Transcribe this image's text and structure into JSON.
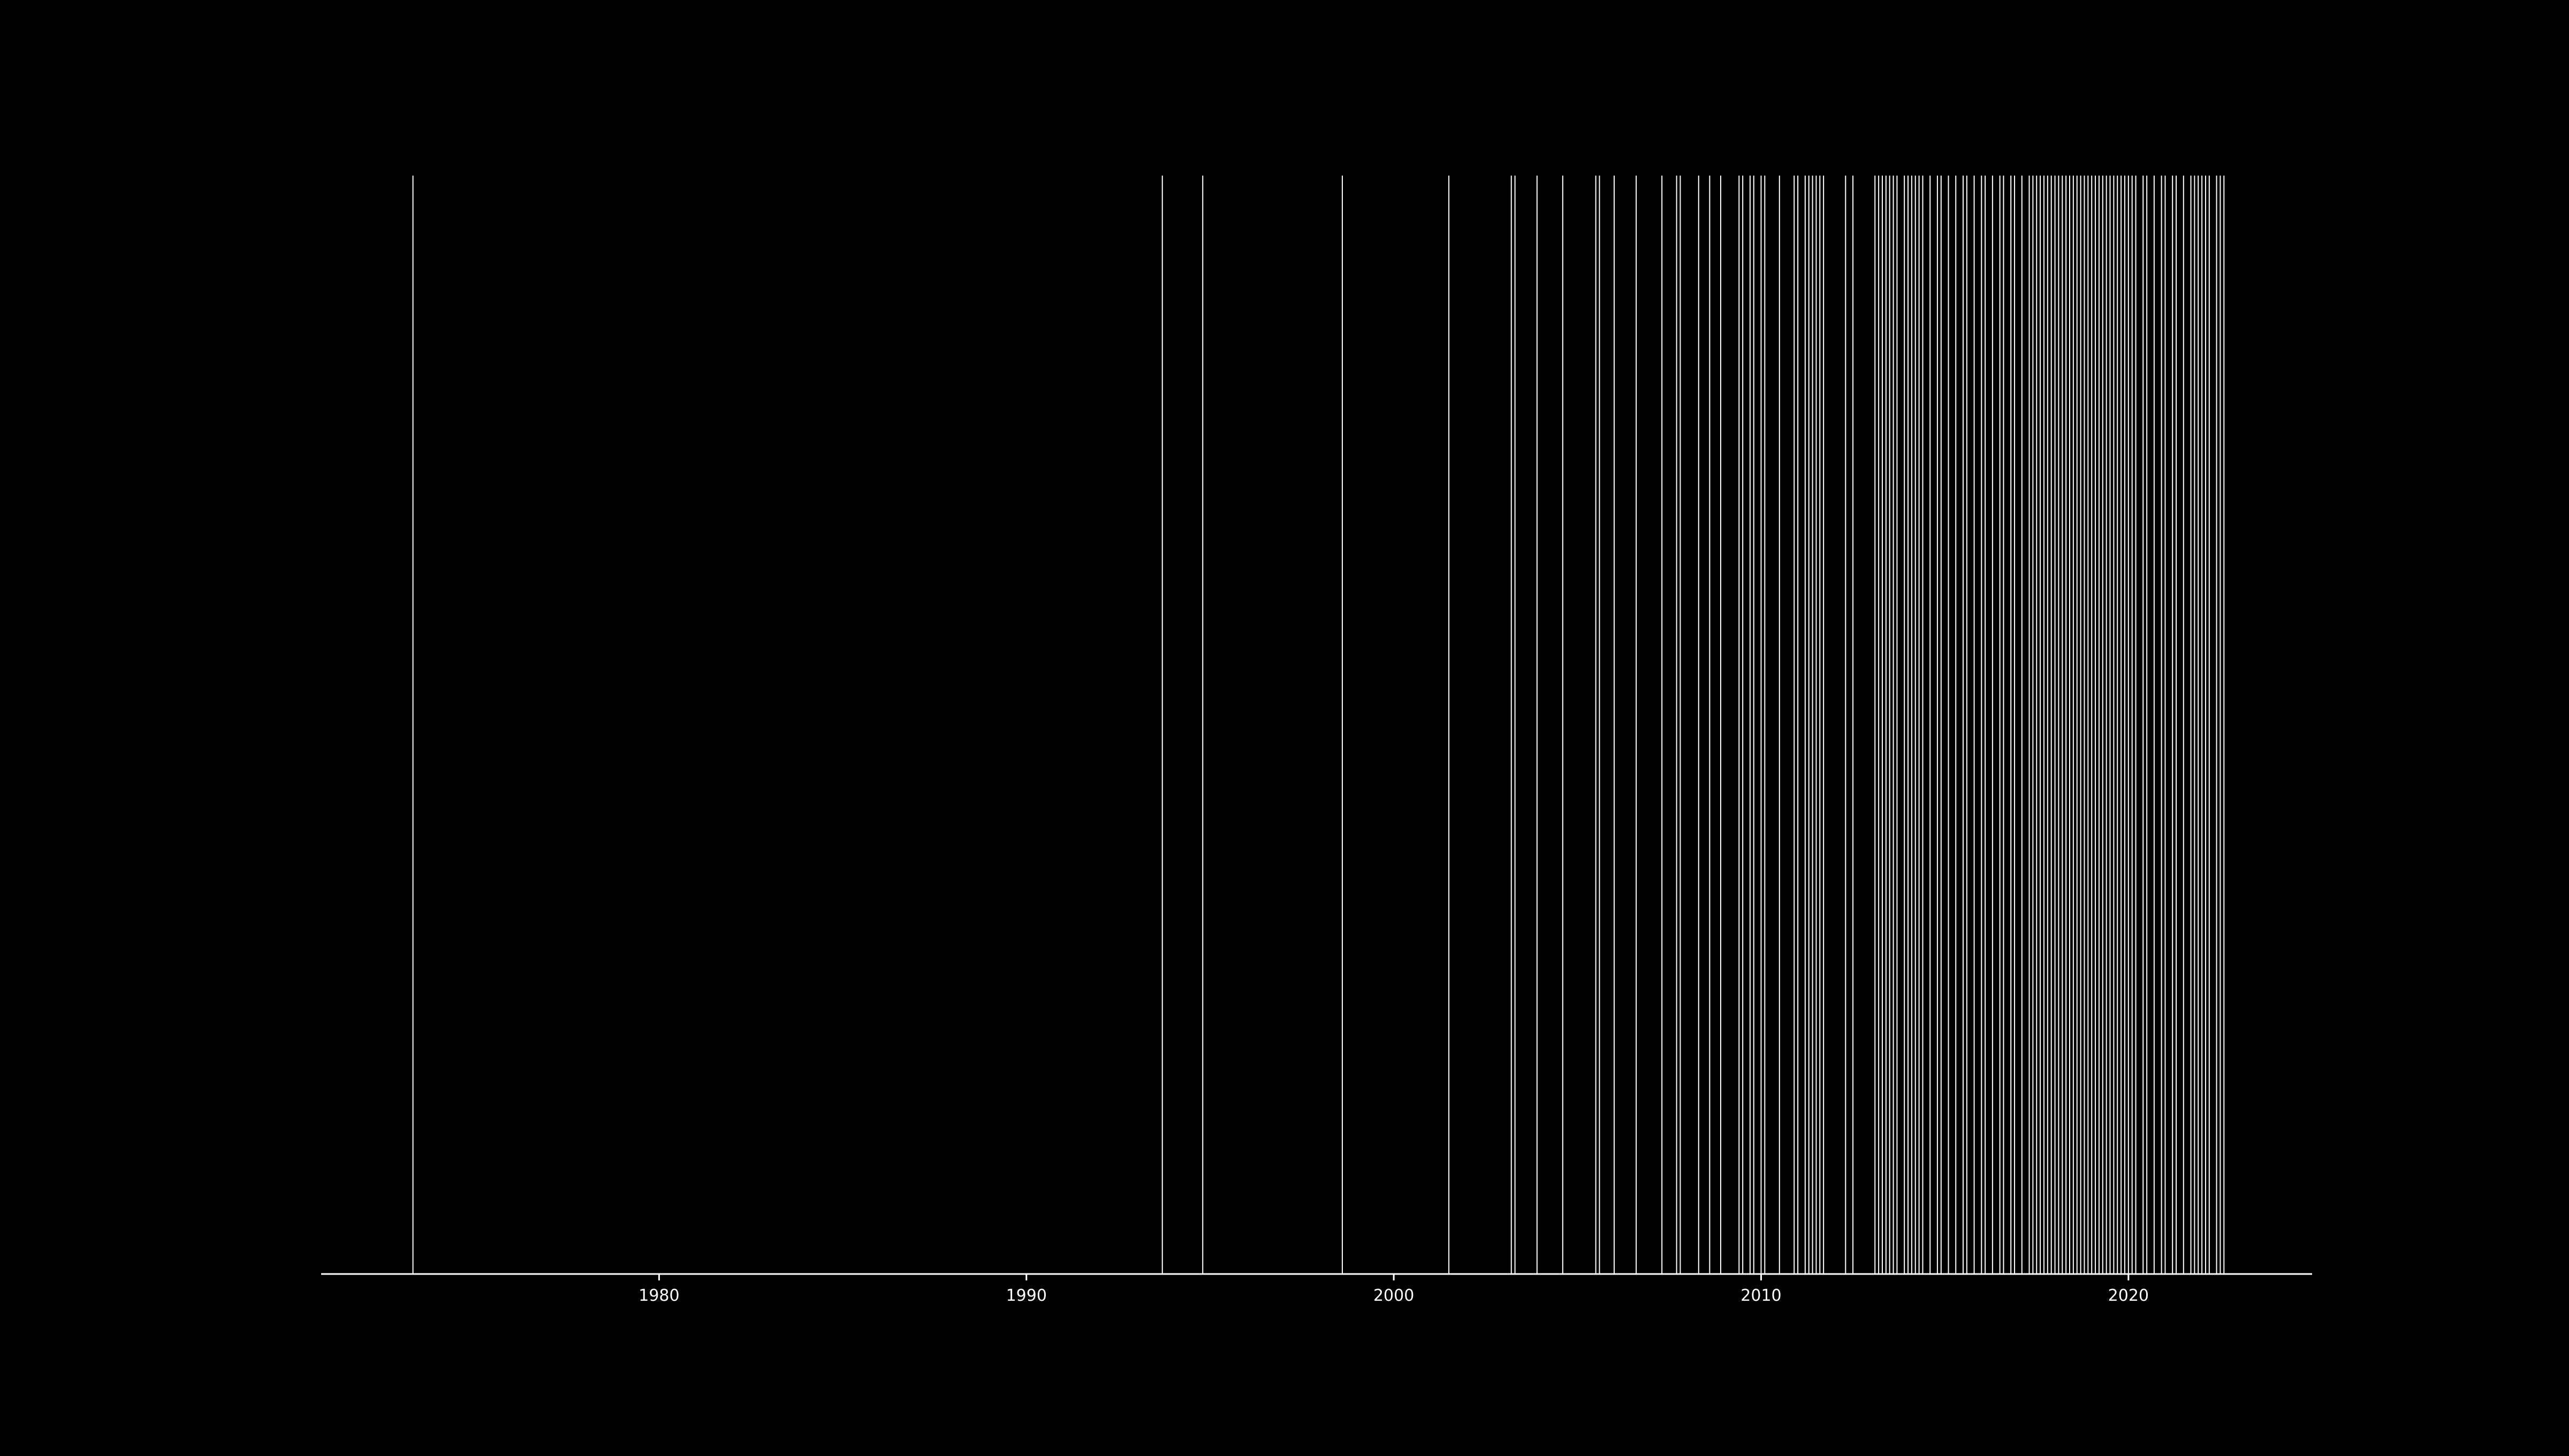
{
  "chart_data": {
    "type": "event-lines",
    "title": "",
    "xlabel": "",
    "ylabel": "",
    "xlim": [
      1970.8,
      2025.0
    ],
    "x_ticks": [
      1980,
      1990,
      2000,
      2010,
      2020
    ],
    "x_tick_labels": [
      "1980",
      "1990",
      "2000",
      "2010",
      "2020"
    ],
    "grid": false,
    "legend": "none",
    "colors": {
      "background": "#000000",
      "line": "#ffffff",
      "axis": "#ffffff"
    },
    "events": [
      1973.3,
      1993.7,
      1994.8,
      1998.6,
      2001.5,
      2003.2,
      2003.3,
      2003.9,
      2004.6,
      2005.5,
      2005.6,
      2006.0,
      2006.6,
      2007.3,
      2007.7,
      2007.8,
      2008.3,
      2008.6,
      2008.9,
      2009.4,
      2009.5,
      2009.7,
      2009.8,
      2010.0,
      2010.1,
      2010.5,
      2010.9,
      2011.0,
      2011.2,
      2011.3,
      2011.4,
      2011.5,
      2011.6,
      2011.7,
      2012.3,
      2012.5,
      2013.1,
      2013.2,
      2013.3,
      2013.4,
      2013.5,
      2013.6,
      2013.7,
      2013.9,
      2014.0,
      2014.1,
      2014.2,
      2014.3,
      2014.4,
      2014.6,
      2014.8,
      2014.9,
      2015.1,
      2015.3,
      2015.5,
      2015.6,
      2015.8,
      2016.0,
      2016.1,
      2016.3,
      2016.5,
      2016.6,
      2016.8,
      2016.9,
      2017.1,
      2017.3,
      2017.4,
      2017.5,
      2017.6,
      2017.7,
      2017.8,
      2017.9,
      2018.0,
      2018.1,
      2018.2,
      2018.3,
      2018.4,
      2018.5,
      2018.6,
      2018.7,
      2018.8,
      2018.9,
      2019.0,
      2019.1,
      2019.2,
      2019.3,
      2019.4,
      2019.5,
      2019.6,
      2019.7,
      2019.8,
      2019.9,
      2020.0,
      2020.1,
      2020.2,
      2020.4,
      2020.5,
      2020.7,
      2020.9,
      2021.0,
      2021.2,
      2021.3,
      2021.5,
      2021.7,
      2021.8,
      2021.9,
      2022.0,
      2022.1,
      2022.2,
      2022.4,
      2022.5,
      2022.6
    ]
  }
}
